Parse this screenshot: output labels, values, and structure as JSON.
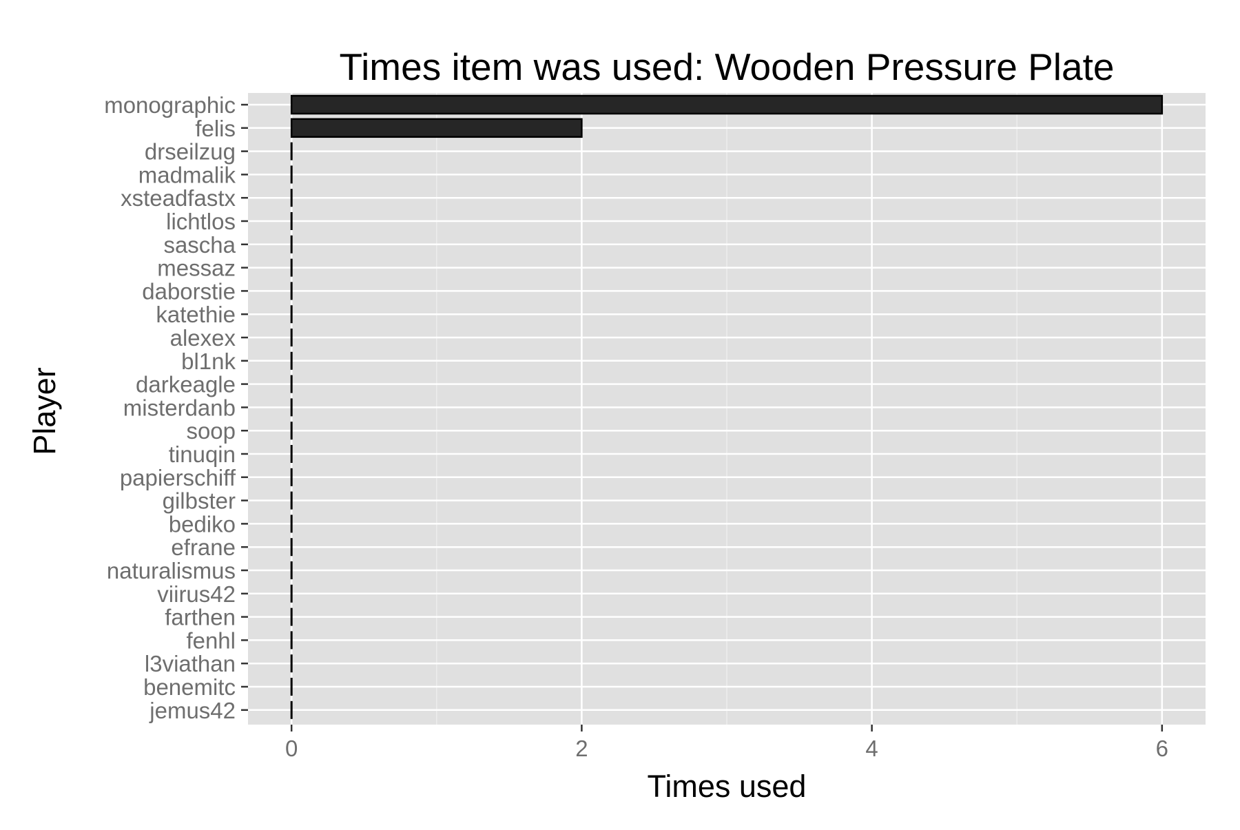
{
  "chart_data": {
    "type": "bar",
    "orientation": "horizontal",
    "title": "Times item was used: Wooden Pressure Plate",
    "xlabel": "Times used",
    "ylabel": "Player",
    "categories": [
      "monographic",
      "felis",
      "drseilzug",
      "madmalik",
      "xsteadfastx",
      "lichtlos",
      "sascha",
      "messaz",
      "daborstie",
      "katethie",
      "alexex",
      "bl1nk",
      "darkeagle",
      "misterdanb",
      "soop",
      "tinuqin",
      "papierschiff",
      "gilbster",
      "bediko",
      "efrane",
      "naturalismus",
      "viirus42",
      "farthen",
      "fenhl",
      "l3viathan",
      "benemitc",
      "jemus42"
    ],
    "values": [
      6,
      2,
      0,
      0,
      0,
      0,
      0,
      0,
      0,
      0,
      0,
      0,
      0,
      0,
      0,
      0,
      0,
      0,
      0,
      0,
      0,
      0,
      0,
      0,
      0,
      0,
      0
    ],
    "xticks": [
      "0",
      "2",
      "4",
      "6"
    ],
    "xtick_values": [
      0,
      2,
      4,
      6
    ],
    "xlim": [
      -0.3,
      6.3
    ],
    "grid": true,
    "legend": "none",
    "colors": {
      "panel": "#E0E0E0",
      "grid": "#FFFFFF",
      "bar_fill": "#262626",
      "bar_stroke": "#000000",
      "tick_text": "#6E6E6E",
      "title_text": "#000000"
    }
  }
}
